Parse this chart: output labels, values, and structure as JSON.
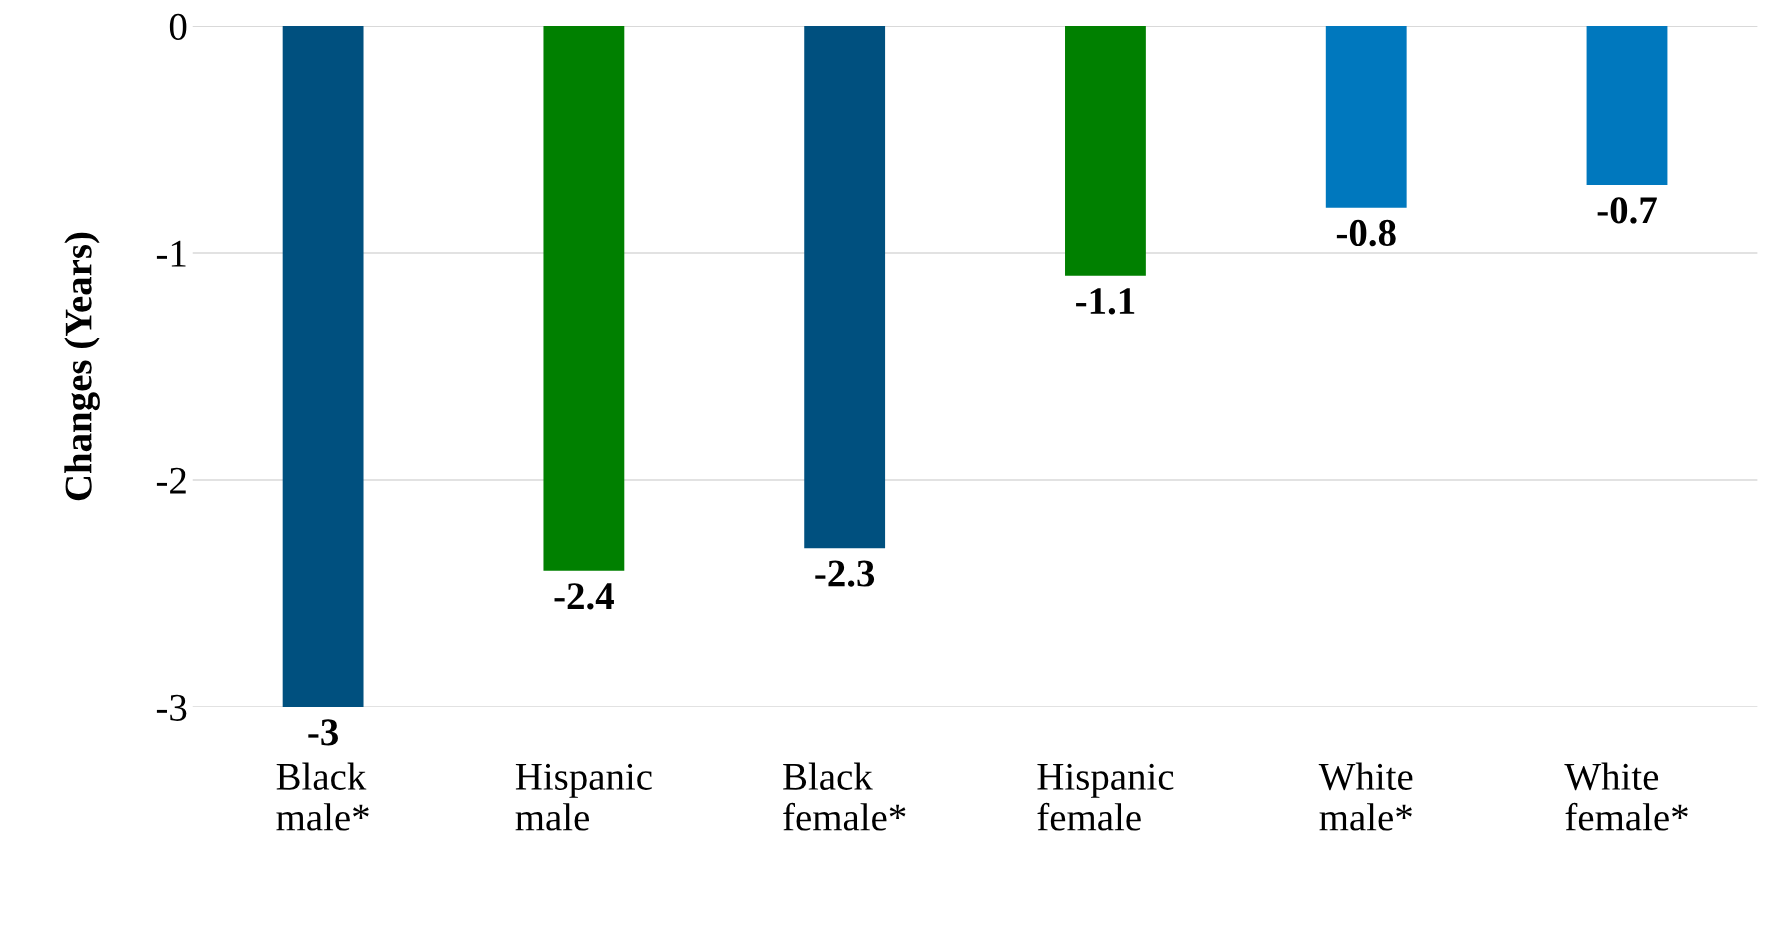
{
  "chart_data": {
    "type": "bar",
    "ylabel": "Changes (Years)",
    "categories": [
      "Black\nmale*",
      "Hispanic\nmale",
      "Black\nfemale*",
      "Hispanic\nfemale",
      "White\nmale*",
      "White\nfemale*"
    ],
    "values": [
      -3,
      -2.4,
      -2.3,
      -1.1,
      -0.8,
      -0.7
    ],
    "colors": [
      "#00507f",
      "#008000",
      "#00507f",
      "#008000",
      "#0078be",
      "#0078be"
    ],
    "ylim": [
      -3,
      0
    ],
    "yticks": [
      -3,
      -2,
      -1,
      0
    ],
    "grid": "y",
    "data_labels": true
  }
}
